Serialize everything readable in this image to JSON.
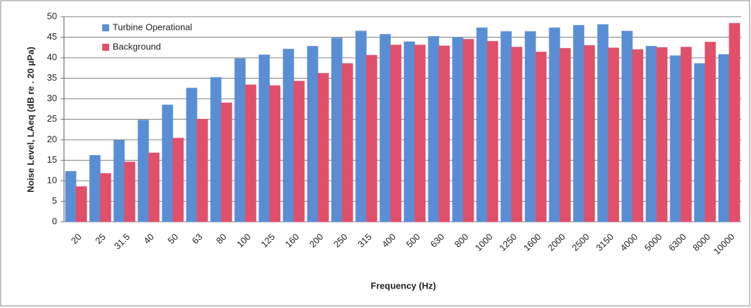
{
  "chart_data": {
    "type": "bar",
    "categories": [
      "20",
      "25",
      "31.5",
      "40",
      "50",
      "63",
      "80",
      "100",
      "125",
      "160",
      "200",
      "250",
      "315",
      "400",
      "500",
      "630",
      "800",
      "1000",
      "1250",
      "1600",
      "2000",
      "2500",
      "3150",
      "4000",
      "5000",
      "6300",
      "8000",
      "10000"
    ],
    "series": [
      {
        "name": "Turbine Operational",
        "color": "#5a8ed4",
        "values": [
          12.3,
          16.2,
          19.9,
          24.8,
          28.5,
          32.6,
          35.2,
          39.8,
          40.7,
          42.1,
          42.8,
          44.8,
          46.5,
          45.7,
          43.9,
          45.2,
          45.0,
          47.3,
          46.4,
          46.4,
          47.3,
          47.9,
          48.1,
          46.5,
          42.8,
          40.5,
          38.6,
          40.8
        ]
      },
      {
        "name": "Background",
        "color": "#e0506a",
        "values": [
          8.6,
          11.8,
          14.6,
          16.8,
          20.4,
          25.0,
          29.0,
          33.4,
          33.2,
          34.3,
          36.2,
          38.6,
          40.6,
          43.1,
          43.1,
          42.9,
          44.5,
          44.0,
          42.6,
          41.4,
          42.3,
          43.0,
          42.4,
          42.0,
          42.5,
          42.6,
          43.8,
          48.4
        ]
      }
    ],
    "x_label": "Frequency (Hz)",
    "y_label": "Noise Level, LAeq (dB re . 20 µPa)",
    "ylim": [
      0,
      50
    ],
    "yticks": [
      0,
      5,
      10,
      15,
      20,
      25,
      30,
      35,
      40,
      45,
      50
    ],
    "grid": true,
    "legend": "upper left"
  }
}
